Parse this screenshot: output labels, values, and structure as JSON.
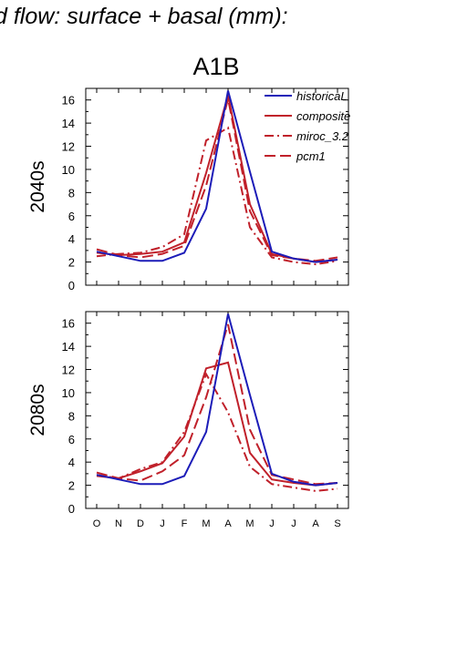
{
  "figure": {
    "title": "d flow: surface + basal (mm):",
    "scenario": "A1B"
  },
  "colors": {
    "historical": "#1c1cb8",
    "projection": "#c0202a"
  },
  "chart_data": [
    {
      "type": "line",
      "row_label": "2040s",
      "categories": [
        "O",
        "N",
        "D",
        "J",
        "F",
        "M",
        "A",
        "M",
        "J",
        "J",
        "A",
        "S"
      ],
      "ylim": [
        0,
        17
      ],
      "yticks": [
        0,
        2,
        4,
        6,
        8,
        10,
        12,
        14,
        16
      ],
      "legend": "top-right",
      "series": [
        {
          "name": "historicaL",
          "style": "solid",
          "color": "#1c1cb8",
          "values": [
            2.9,
            2.5,
            2.1,
            2.1,
            2.8,
            6.6,
            16.8,
            9.8,
            2.9,
            2.3,
            2.0,
            2.2
          ]
        },
        {
          "name": "composite",
          "style": "solid",
          "color": "#c0202a",
          "values": [
            2.8,
            2.6,
            2.7,
            2.9,
            3.7,
            9.7,
            16.4,
            7.0,
            2.7,
            2.3,
            2.0,
            2.2
          ]
        },
        {
          "name": "miroc_3.2",
          "style": "dashdot",
          "color": "#c0202a",
          "values": [
            2.5,
            2.7,
            2.8,
            3.3,
            4.4,
            12.5,
            13.6,
            5.0,
            2.4,
            2.0,
            1.8,
            2.1
          ]
        },
        {
          "name": "pcm1",
          "style": "dashed",
          "color": "#c0202a",
          "values": [
            3.1,
            2.6,
            2.4,
            2.7,
            3.4,
            8.6,
            16.1,
            6.4,
            2.6,
            2.3,
            2.1,
            2.4
          ]
        }
      ]
    },
    {
      "type": "line",
      "row_label": "2080s",
      "categories": [
        "O",
        "N",
        "D",
        "J",
        "F",
        "M",
        "A",
        "M",
        "J",
        "J",
        "A",
        "S"
      ],
      "ylim": [
        0,
        17
      ],
      "yticks": [
        0,
        2,
        4,
        6,
        8,
        10,
        12,
        14,
        16
      ],
      "series": [
        {
          "name": "historicaL",
          "style": "solid",
          "color": "#1c1cb8",
          "values": [
            2.9,
            2.5,
            2.1,
            2.1,
            2.8,
            6.6,
            16.8,
            9.8,
            3.0,
            2.3,
            2.0,
            2.2
          ]
        },
        {
          "name": "composite",
          "style": "solid",
          "color": "#c0202a",
          "values": [
            2.8,
            2.6,
            3.2,
            3.9,
            6.2,
            12.1,
            12.6,
            4.8,
            2.5,
            2.2,
            2.0,
            2.2
          ]
        },
        {
          "name": "miroc_3.2",
          "style": "dashdot",
          "color": "#c0202a",
          "values": [
            2.9,
            2.6,
            3.4,
            4.0,
            6.6,
            11.6,
            8.3,
            3.6,
            2.1,
            1.8,
            1.5,
            1.7
          ]
        },
        {
          "name": "pcm1",
          "style": "dashed",
          "color": "#c0202a",
          "values": [
            3.1,
            2.6,
            2.4,
            3.2,
            4.6,
            9.6,
            15.9,
            6.8,
            2.9,
            2.5,
            2.1,
            2.2
          ]
        }
      ]
    }
  ]
}
